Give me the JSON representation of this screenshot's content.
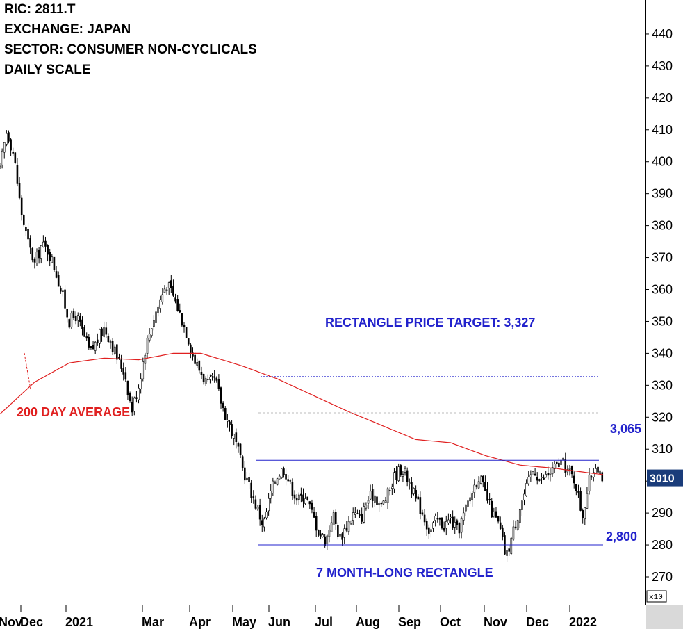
{
  "header": {
    "ric": "RIC: 2811.T",
    "exchange": "EXCHANGE: JAPAN",
    "sector": "SECTOR: CONSUMER NON-CYCLICALS",
    "scale": "DAILY SCALE"
  },
  "chart_data": {
    "type": "candlestick",
    "y_axis": {
      "side": "right",
      "ylim": [
        265,
        445
      ],
      "ticks": [
        270,
        280,
        290,
        300,
        310,
        320,
        330,
        340,
        350,
        360,
        370,
        380,
        390,
        400,
        410,
        420,
        430,
        440
      ],
      "multiplier_label": "x10"
    },
    "x_ticks": [
      "Nov",
      "Dec",
      "2021",
      "Mar",
      "Apr",
      "May",
      "Jun",
      "Jul",
      "Aug",
      "Sep",
      "Oct",
      "Nov",
      "Dec",
      "2022"
    ],
    "grid": false,
    "last_price_label": "3010",
    "price_series_approx": [
      {
        "t": 0,
        "p": 398
      },
      {
        "t": 4,
        "p": 410
      },
      {
        "t": 8,
        "p": 402
      },
      {
        "t": 12,
        "p": 385
      },
      {
        "t": 16,
        "p": 375
      },
      {
        "t": 20,
        "p": 368
      },
      {
        "t": 24,
        "p": 374
      },
      {
        "t": 28,
        "p": 372
      },
      {
        "t": 32,
        "p": 366
      },
      {
        "t": 36,
        "p": 358
      },
      {
        "t": 40,
        "p": 350
      },
      {
        "t": 44,
        "p": 352
      },
      {
        "t": 48,
        "p": 346
      },
      {
        "t": 52,
        "p": 340
      },
      {
        "t": 56,
        "p": 344
      },
      {
        "t": 60,
        "p": 348
      },
      {
        "t": 64,
        "p": 344
      },
      {
        "t": 68,
        "p": 338
      },
      {
        "t": 72,
        "p": 334
      },
      {
        "t": 76,
        "p": 322
      },
      {
        "t": 80,
        "p": 330
      },
      {
        "t": 84,
        "p": 342
      },
      {
        "t": 88,
        "p": 350
      },
      {
        "t": 92,
        "p": 356
      },
      {
        "t": 96,
        "p": 362
      },
      {
        "t": 100,
        "p": 358
      },
      {
        "t": 104,
        "p": 352
      },
      {
        "t": 108,
        "p": 346
      },
      {
        "t": 112,
        "p": 338
      },
      {
        "t": 116,
        "p": 334
      },
      {
        "t": 120,
        "p": 330
      },
      {
        "t": 124,
        "p": 332
      },
      {
        "t": 128,
        "p": 324
      },
      {
        "t": 132,
        "p": 318
      },
      {
        "t": 136,
        "p": 312
      },
      {
        "t": 140,
        "p": 304
      },
      {
        "t": 144,
        "p": 298
      },
      {
        "t": 148,
        "p": 292
      },
      {
        "t": 152,
        "p": 286
      },
      {
        "t": 156,
        "p": 296
      },
      {
        "t": 160,
        "p": 302
      },
      {
        "t": 164,
        "p": 304
      },
      {
        "t": 168,
        "p": 298
      },
      {
        "t": 172,
        "p": 294
      },
      {
        "t": 176,
        "p": 296
      },
      {
        "t": 180,
        "p": 290
      },
      {
        "t": 184,
        "p": 284
      },
      {
        "t": 188,
        "p": 281
      },
      {
        "t": 192,
        "p": 290
      },
      {
        "t": 196,
        "p": 282
      },
      {
        "t": 200,
        "p": 286
      },
      {
        "t": 204,
        "p": 290
      },
      {
        "t": 208,
        "p": 288
      },
      {
        "t": 212,
        "p": 294
      },
      {
        "t": 216,
        "p": 296
      },
      {
        "t": 220,
        "p": 292
      },
      {
        "t": 224,
        "p": 296
      },
      {
        "t": 228,
        "p": 302
      },
      {
        "t": 232,
        "p": 304
      },
      {
        "t": 236,
        "p": 300
      },
      {
        "t": 240,
        "p": 294
      },
      {
        "t": 244,
        "p": 290
      },
      {
        "t": 248,
        "p": 284
      },
      {
        "t": 252,
        "p": 288
      },
      {
        "t": 256,
        "p": 286
      },
      {
        "t": 260,
        "p": 288
      },
      {
        "t": 264,
        "p": 284
      },
      {
        "t": 268,
        "p": 290
      },
      {
        "t": 272,
        "p": 296
      },
      {
        "t": 276,
        "p": 302
      },
      {
        "t": 280,
        "p": 296
      },
      {
        "t": 284,
        "p": 290
      },
      {
        "t": 288,
        "p": 286
      },
      {
        "t": 292,
        "p": 276
      },
      {
        "t": 296,
        "p": 284
      },
      {
        "t": 300,
        "p": 292
      },
      {
        "t": 304,
        "p": 298
      },
      {
        "t": 308,
        "p": 304
      },
      {
        "t": 312,
        "p": 300
      },
      {
        "t": 316,
        "p": 302
      },
      {
        "t": 320,
        "p": 304
      },
      {
        "t": 324,
        "p": 306
      },
      {
        "t": 328,
        "p": 303
      },
      {
        "t": 332,
        "p": 300
      },
      {
        "t": 336,
        "p": 289
      },
      {
        "t": 340,
        "p": 300
      },
      {
        "t": 344,
        "p": 306
      },
      {
        "t": 348,
        "p": 301
      }
    ],
    "moving_average_approx": [
      {
        "t": 0,
        "p": 321
      },
      {
        "t": 20,
        "p": 331
      },
      {
        "t": 40,
        "p": 337
      },
      {
        "t": 60,
        "p": 338.5
      },
      {
        "t": 80,
        "p": 338
      },
      {
        "t": 100,
        "p": 340
      },
      {
        "t": 116,
        "p": 340
      },
      {
        "t": 140,
        "p": 336
      },
      {
        "t": 160,
        "p": 332
      },
      {
        "t": 200,
        "p": 322
      },
      {
        "t": 240,
        "p": 313
      },
      {
        "t": 260,
        "p": 312
      },
      {
        "t": 280,
        "p": 308
      },
      {
        "t": 300,
        "p": 305
      },
      {
        "t": 320,
        "p": 304
      },
      {
        "t": 348,
        "p": 302
      }
    ],
    "levels": {
      "resistance": 3065,
      "support": 2800,
      "target": 3327
    },
    "annotations": {
      "target": "RECTANGLE PRICE TARGET: 3,327",
      "resistance_label": "3,065",
      "support_label": "2,800",
      "pattern": "7 MONTH-LONG RECTANGLE",
      "ma_label": "200 DAY AVERAGE"
    },
    "colors": {
      "candle": "#000000",
      "moving_average": "#e02020",
      "annotation": "#2222cc",
      "badge": "#1a3c7a"
    }
  }
}
